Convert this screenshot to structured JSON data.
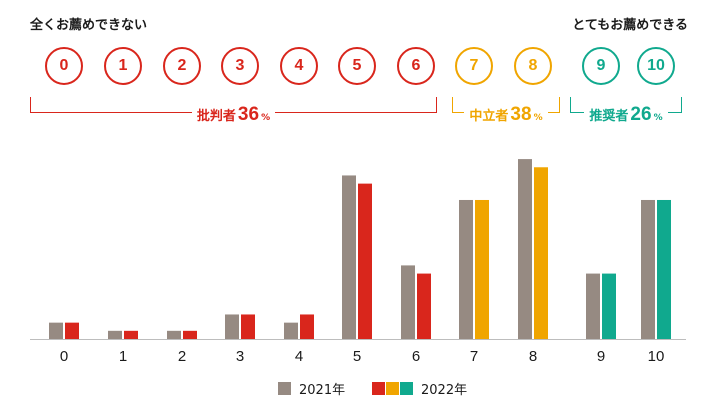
{
  "scale": {
    "left_label": "全くお薦めできない",
    "right_label": "とてもお薦めできる",
    "scores": [
      "0",
      "1",
      "2",
      "3",
      "4",
      "5",
      "6",
      "7",
      "8",
      "9",
      "10"
    ]
  },
  "groups": [
    {
      "name": "批判者",
      "percent": "36",
      "unit": "%",
      "color": "#d9261c",
      "scores": [
        0,
        6
      ]
    },
    {
      "name": "中立者",
      "percent": "38",
      "unit": "%",
      "color": "#f0a500",
      "scores": [
        7,
        8
      ]
    },
    {
      "name": "推奨者",
      "percent": "26",
      "unit": "%",
      "color": "#10a98e",
      "scores": [
        9,
        10
      ]
    }
  ],
  "chart_data": {
    "type": "bar",
    "categories": [
      "0",
      "1",
      "2",
      "3",
      "4",
      "5",
      "6",
      "7",
      "8",
      "9",
      "10"
    ],
    "series": [
      {
        "name": "2021年",
        "color": "#968a82",
        "values": [
          2,
          1,
          1,
          3,
          2,
          20,
          9,
          17,
          22,
          8,
          17
        ]
      },
      {
        "name": "2022年",
        "colors": [
          "#d9261c",
          "#d9261c",
          "#d9261c",
          "#d9261c",
          "#d9261c",
          "#d9261c",
          "#d9261c",
          "#f0a500",
          "#f0a500",
          "#10a98e",
          "#10a98e"
        ],
        "values": [
          2,
          1,
          1,
          3,
          3,
          19,
          8,
          17,
          21,
          8,
          17
        ]
      }
    ],
    "ylim": [
      0,
      22.5
    ],
    "grid": false,
    "legend": "bottom-center"
  }
}
